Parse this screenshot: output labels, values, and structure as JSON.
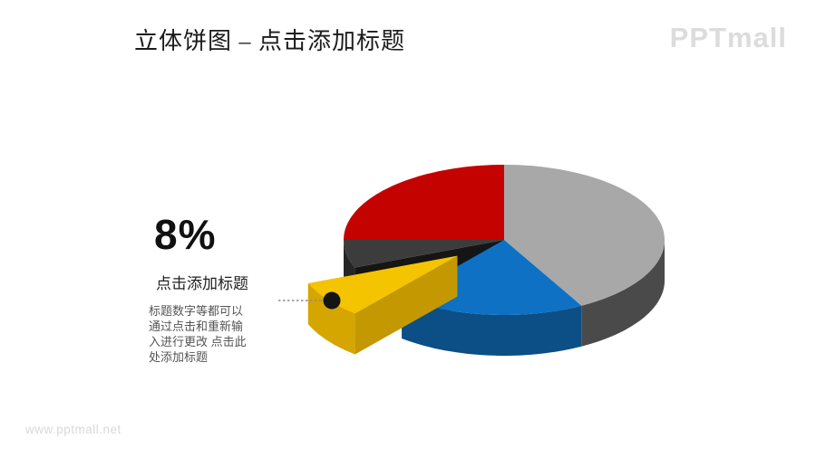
{
  "slide": {
    "title": "立体饼图 – 点击添加标题",
    "logo_text": "PPTmall",
    "watermark": "www.pptmall.net"
  },
  "callout": {
    "percent_label": "8%",
    "subtitle": "点击添加标题",
    "body": "标题数字等都可以通过点击和重新输入进行更改 点击此处添加标题"
  },
  "chart_data": {
    "type": "pie",
    "style": "3d-exploded",
    "title": "",
    "legend": false,
    "unit": "%",
    "start_angle_deg": 0,
    "explode_fraction": 0.36,
    "slices": [
      {
        "name": "gray-slice",
        "value": 42,
        "top_color": "#A8A8A8",
        "side_color": "#4A4A4A",
        "exploded": false
      },
      {
        "name": "blue-slice",
        "value": 19,
        "top_color": "#0E71C4",
        "side_color": "#0C4E86",
        "exploded": false
      },
      {
        "name": "yellow-slice",
        "value": 8,
        "top_color": "#F5C400",
        "side_color": "#D5A500",
        "exploded": true,
        "label": "8%"
      },
      {
        "name": "dark-gray-slice",
        "value": 6,
        "top_color": "#3C3C3C",
        "side_color": "#262626",
        "exploded": false
      },
      {
        "name": "red-slice",
        "value": 25,
        "top_color": "#C40300",
        "side_color": "#7A0000",
        "exploded": false
      }
    ]
  }
}
